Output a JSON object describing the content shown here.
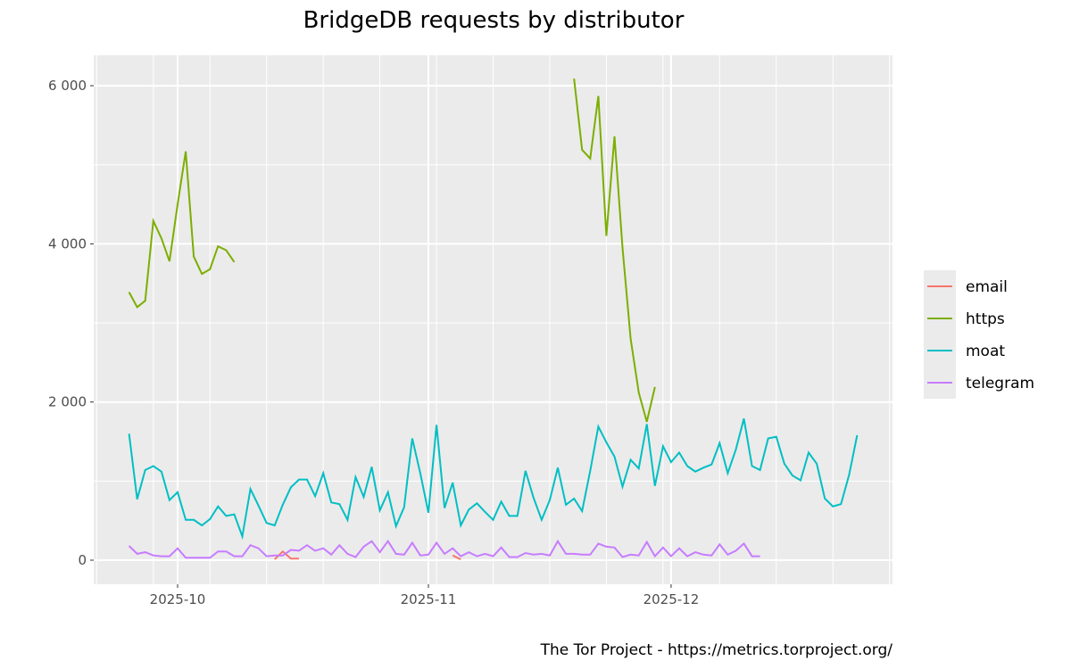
{
  "chart_data": {
    "type": "line",
    "title": "BridgeDB requests by distributor",
    "caption": "The Tor Project - https://metrics.torproject.org/",
    "xlabel": "",
    "ylabel": "",
    "x_ticks": [
      {
        "date": "2025-10-01",
        "label": "2025-10"
      },
      {
        "date": "2025-11-01",
        "label": "2025-11"
      },
      {
        "date": "2025-12-01",
        "label": "2025-12"
      }
    ],
    "y_ticks": [
      {
        "value": 0,
        "label": "0"
      },
      {
        "value": 2000,
        "label": "2 000"
      },
      {
        "value": 4000,
        "label": "4 000"
      },
      {
        "value": 6000,
        "label": "6 000"
      }
    ],
    "xlim": [
      "2025-09-20",
      "2025-12-28"
    ],
    "ylim": [
      -305,
      6385
    ],
    "grid": true,
    "legend_position": "right",
    "series": [
      {
        "name": "email",
        "color": "#F8766D",
        "segments": [
          {
            "start": "2025-10-13",
            "values": [
              10,
              110,
              20,
              20
            ]
          },
          {
            "start": "2025-11-04",
            "values": [
              60,
              10
            ]
          }
        ]
      },
      {
        "name": "https",
        "color": "#7CAE00",
        "segments": [
          {
            "start": "2025-09-25",
            "values": [
              3390,
              3200,
              3280,
              4290,
              4070,
              3780,
              4500,
              5170,
              3840,
              3620,
              3680,
              3970,
              3920,
              3770
            ]
          },
          {
            "start": "2025-11-19",
            "values": [
              6090,
              5190,
              5080,
              5870,
              4100,
              5360,
              3950,
              2800,
              2120,
              1750,
              2190
            ]
          }
        ]
      },
      {
        "name": "moat",
        "color": "#00BFC4",
        "segments": [
          {
            "start": "2025-09-25",
            "values": [
              1600,
              770,
              1140,
              1190,
              1120,
              760,
              860,
              510,
              510,
              440,
              520,
              680,
              560,
              580,
              300,
              900,
              690,
              470,
              440,
              700,
              920,
              1020,
              1020,
              810,
              1100,
              730,
              710,
              510,
              1050,
              800,
              1180,
              630,
              860,
              430,
              670,
              1540,
              1100,
              600,
              1710,
              660,
              980,
              440,
              640,
              720,
              610,
              510,
              740,
              560,
              560,
              1130,
              790,
              510,
              760,
              1170,
              700,
              780,
              620,
              1130,
              1690,
              1490,
              1310,
              930,
              1270,
              1160,
              1720,
              940,
              1440,
              1240,
              1360,
              1190,
              1120,
              1170,
              1210,
              1480,
              1100,
              1400,
              1790,
              1190,
              1140,
              1540,
              1560,
              1220,
              1070,
              1010,
              1360,
              1220,
              780,
              680,
              710,
              1080,
              1580
            ]
          }
        ]
      },
      {
        "name": "telegram",
        "color": "#C77CFF",
        "segments": [
          {
            "start": "2025-09-25",
            "values": [
              180,
              80,
              100,
              60,
              50,
              50,
              150,
              30,
              30,
              30,
              30,
              110,
              110,
              50,
              50,
              190,
              150,
              50,
              60,
              60,
              130,
              120,
              190,
              120,
              150,
              70,
              190,
              80,
              40,
              170,
              240,
              100,
              240,
              80,
              70,
              220,
              60,
              70,
              220,
              80,
              150,
              50,
              100,
              50,
              80,
              50,
              160,
              40,
              40,
              90,
              70,
              80,
              60,
              240,
              80,
              80,
              70,
              70,
              210,
              170,
              160,
              40,
              70,
              60,
              230,
              50,
              160,
              50,
              150,
              50,
              100,
              70,
              60,
              200,
              70,
              120,
              210,
              50,
              50
            ]
          }
        ]
      }
    ]
  }
}
